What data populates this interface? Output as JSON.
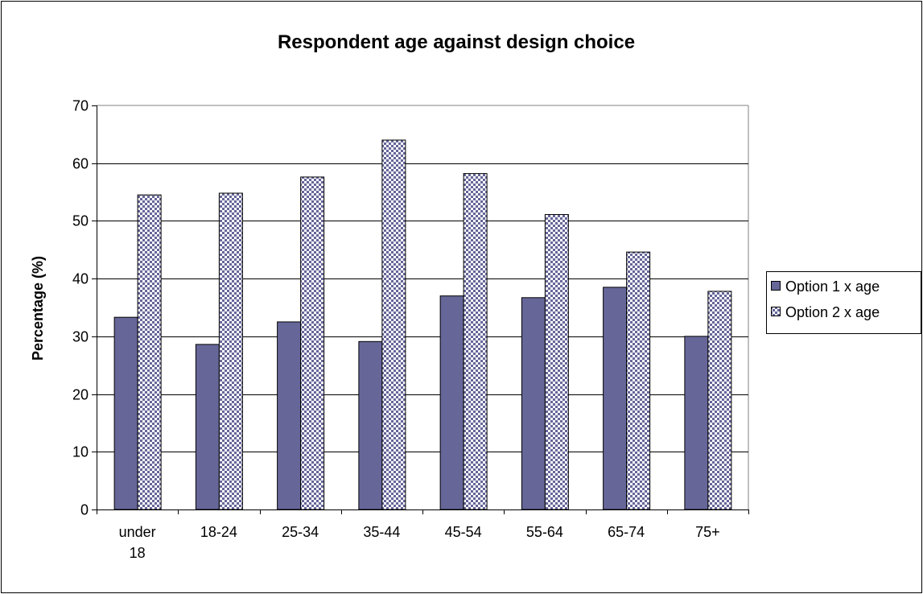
{
  "chart_data": {
    "type": "bar",
    "title": "Respondent age against design choice",
    "xlabel": "",
    "ylabel": "Percentage (%)",
    "ylim": [
      0,
      70
    ],
    "yticks": [
      0,
      10,
      20,
      30,
      40,
      50,
      60,
      70
    ],
    "categories": [
      [
        "under",
        "18"
      ],
      [
        "18-24"
      ],
      [
        "25-34"
      ],
      [
        "35-44"
      ],
      [
        "45-54"
      ],
      [
        "55-64"
      ],
      [
        "65-74"
      ],
      [
        "75+"
      ]
    ],
    "series": [
      {
        "name": "Option 1 x age",
        "color": "#666699",
        "pattern": "solid",
        "values": [
          33.3,
          28.6,
          32.5,
          29.1,
          37.0,
          36.7,
          38.5,
          30.0
        ]
      },
      {
        "name": "Option 2 x age",
        "color": "#666699",
        "pattern": "checkerboard",
        "values": [
          54.5,
          54.8,
          57.6,
          64.0,
          58.2,
          51.1,
          44.6,
          37.8
        ]
      }
    ],
    "grid": true,
    "legend_position": "right"
  }
}
